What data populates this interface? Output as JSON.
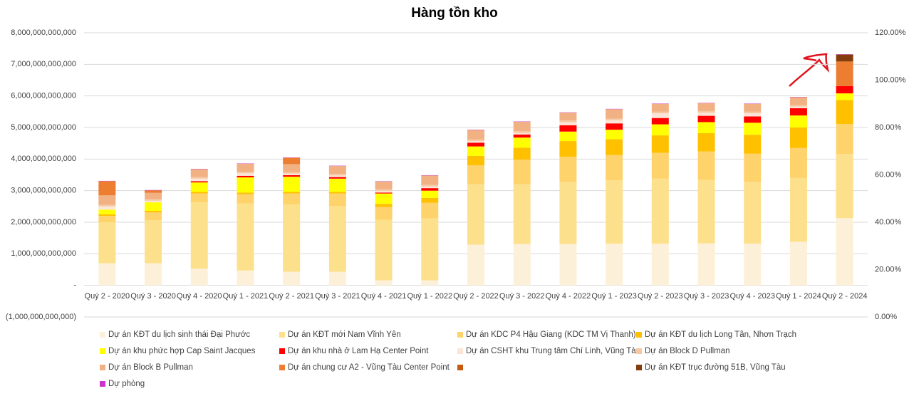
{
  "chart_data": {
    "type": "stacked-bar",
    "title": "Hàng tồn kho",
    "categories": [
      "Quý 2 - 2020",
      "Quý 3 - 2020",
      "Quý 4 - 2020",
      "Quý 1 - 2021",
      "Quý 2 - 2021",
      "Quý 3 - 2021",
      "Quý 4 - 2021",
      "Quý 1 - 2022",
      "Quý 2 - 2022",
      "Quý 3 - 2022",
      "Quý 4 - 2022",
      "Quý 1 - 2023",
      "Quý 2 - 2023",
      "Quý 3 - 2023",
      "Quý 4 - 2023",
      "Quý 1 - 2024",
      "Quý 2 - 2024"
    ],
    "ylim": [
      -1000000000000,
      8000000000000
    ],
    "yticks": [
      {
        "value": -1000000000000,
        "label": "(1,000,000,000,000)"
      },
      {
        "value": 0,
        "label": "-"
      },
      {
        "value": 1000000000000,
        "label": "1,000,000,000,000"
      },
      {
        "value": 2000000000000,
        "label": "2,000,000,000,000"
      },
      {
        "value": 3000000000000,
        "label": "3,000,000,000,000"
      },
      {
        "value": 4000000000000,
        "label": "4,000,000,000,000"
      },
      {
        "value": 5000000000000,
        "label": "5,000,000,000,000"
      },
      {
        "value": 6000000000000,
        "label": "6,000,000,000,000"
      },
      {
        "value": 7000000000000,
        "label": "7,000,000,000,000"
      },
      {
        "value": 8000000000000,
        "label": "8,000,000,000,000"
      }
    ],
    "y2lim": [
      0,
      120
    ],
    "y2ticks": [
      {
        "value": 0,
        "label": "0.00%"
      },
      {
        "value": 20,
        "label": "20.00%"
      },
      {
        "value": 40,
        "label": "40.00%"
      },
      {
        "value": 60,
        "label": "60.00%"
      },
      {
        "value": 80,
        "label": "80.00%"
      },
      {
        "value": 100,
        "label": "100.00%"
      },
      {
        "value": 120,
        "label": "120.00%"
      }
    ],
    "grid": true,
    "legend": "bottom",
    "series": [
      {
        "name": "Dự án KĐT du lịch sinh thái Đại Phước",
        "color": "#fdf0d8",
        "values": [
          700000000000,
          700000000000,
          530000000000,
          470000000000,
          430000000000,
          430000000000,
          160000000000,
          160000000000,
          1290000000000,
          1310000000000,
          1310000000000,
          1320000000000,
          1320000000000,
          1330000000000,
          1320000000000,
          1380000000000,
          2130000000000
        ]
      },
      {
        "name": "Dự án KĐT mới Nam Vĩnh Yên",
        "color": "#fde08c",
        "values": [
          1300000000000,
          1360000000000,
          2100000000000,
          2120000000000,
          2130000000000,
          2080000000000,
          1920000000000,
          1960000000000,
          1910000000000,
          1890000000000,
          1960000000000,
          2010000000000,
          2060000000000,
          2010000000000,
          1950000000000,
          2020000000000,
          2030000000000
        ]
      },
      {
        "name": "Dự án KDC P4 Hậu Giang (KDC TM Vị Thanh)",
        "color": "#fed36c",
        "values": [
          200000000000,
          250000000000,
          280000000000,
          300000000000,
          350000000000,
          400000000000,
          400000000000,
          500000000000,
          600000000000,
          780000000000,
          800000000000,
          800000000000,
          820000000000,
          900000000000,
          900000000000,
          950000000000,
          950000000000
        ]
      },
      {
        "name": "Dự án KĐT du lịch Long Tân, Nhơn Trạch",
        "color": "#ffc000",
        "values": [
          50000000000,
          50000000000,
          50000000000,
          50000000000,
          50000000000,
          50000000000,
          100000000000,
          150000000000,
          300000000000,
          380000000000,
          500000000000,
          500000000000,
          550000000000,
          580000000000,
          600000000000,
          650000000000,
          760000000000
        ]
      },
      {
        "name": "Dự án khu phức hợp Cap Saint Jacques",
        "color": "#ffff00",
        "values": [
          150000000000,
          270000000000,
          300000000000,
          480000000000,
          480000000000,
          420000000000,
          330000000000,
          230000000000,
          300000000000,
          320000000000,
          300000000000,
          300000000000,
          350000000000,
          350000000000,
          380000000000,
          380000000000,
          210000000000
        ]
      },
      {
        "name": "Dự án khu nhà ở Lam Hạ Center Point",
        "color": "#ff0000",
        "values": [
          0,
          0,
          40000000000,
          50000000000,
          50000000000,
          50000000000,
          30000000000,
          80000000000,
          120000000000,
          100000000000,
          200000000000,
          200000000000,
          200000000000,
          200000000000,
          200000000000,
          230000000000,
          230000000000
        ]
      },
      {
        "name": "Dự án CSHT khu Trung tâm Chí Linh, Vũng Tàu",
        "color": "#fbe5d6",
        "values": [
          100000000000,
          50000000000,
          80000000000,
          80000000000,
          50000000000,
          50000000000,
          50000000000,
          50000000000,
          50000000000,
          50000000000,
          100000000000,
          100000000000,
          150000000000,
          100000000000,
          100000000000,
          50000000000,
          0
        ]
      },
      {
        "name": "Dự án Block D Pullman",
        "color": "#f6c9a4",
        "values": [
          50000000000,
          50000000000,
          50000000000,
          50000000000,
          50000000000,
          50000000000,
          50000000000,
          50000000000,
          50000000000,
          50000000000,
          50000000000,
          50000000000,
          50000000000,
          50000000000,
          50000000000,
          50000000000,
          0
        ]
      },
      {
        "name": "Dự án Block B Pullman",
        "color": "#f1b183",
        "values": [
          300000000000,
          200000000000,
          250000000000,
          250000000000,
          250000000000,
          250000000000,
          250000000000,
          300000000000,
          300000000000,
          300000000000,
          250000000000,
          300000000000,
          250000000000,
          250000000000,
          250000000000,
          250000000000,
          0
        ]
      },
      {
        "name": "Dự án chung cư A2 - Vũng Tàu Center Point",
        "color": "#ed7d31",
        "values": [
          450000000000,
          80000000000,
          0,
          0,
          200000000000,
          0,
          0,
          0,
          0,
          0,
          0,
          0,
          0,
          0,
          0,
          0,
          780000000000
        ]
      },
      {
        "name": null,
        "color": "#c55a11",
        "values": [
          0,
          0,
          0,
          0,
          0,
          0,
          0,
          0,
          0,
          0,
          0,
          0,
          0,
          0,
          0,
          0,
          0
        ]
      },
      {
        "name": "Dự án KĐT trục đường 51B, Vũng Tàu",
        "color": "#843c0c",
        "values": [
          0,
          0,
          0,
          0,
          0,
          0,
          0,
          0,
          0,
          0,
          0,
          0,
          0,
          0,
          0,
          0,
          220000000000
        ]
      },
      {
        "name": "Dự phòng",
        "color": "#cc33cc",
        "values": [
          10000000000,
          10000000000,
          10000000000,
          10000000000,
          10000000000,
          10000000000,
          10000000000,
          10000000000,
          10000000000,
          10000000000,
          10000000000,
          10000000000,
          10000000000,
          10000000000,
          10000000000,
          10000000000,
          10000000000
        ]
      }
    ]
  }
}
